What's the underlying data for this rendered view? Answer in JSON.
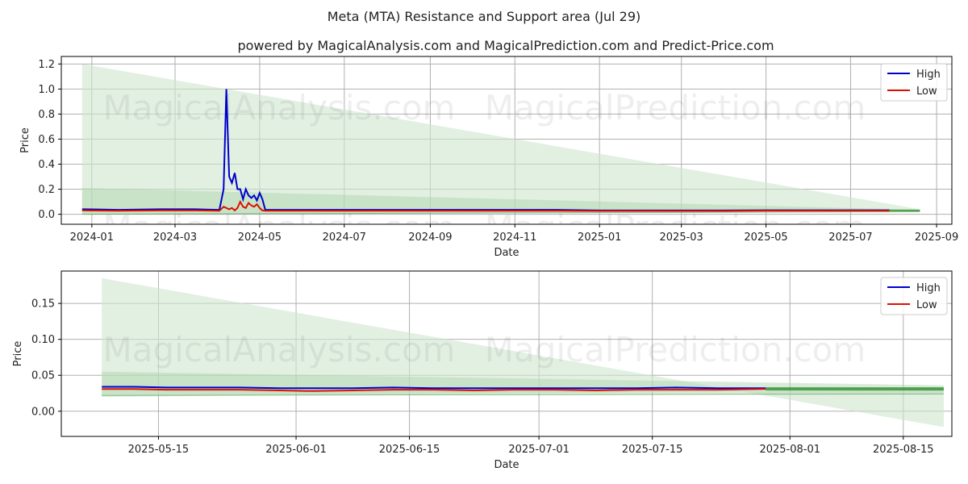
{
  "figure": {
    "title": "Meta (MTA) Resistance and Support area (Jul 29)",
    "subtitle": "powered by MagicalAnalysis.com and MagicalPrediction.com and Predict-Price.com",
    "watermarks": [
      "MagicalAnalysis.com",
      "MagicalPrediction.com"
    ]
  },
  "colors": {
    "high": "#0000cc",
    "low": "#dd1100",
    "band": "#2e8b2e",
    "band_fill": "#cfe6cf"
  },
  "chart_data": [
    {
      "type": "line",
      "x_axis_type": "date",
      "xlabel": "Date",
      "ylabel": "Price",
      "xlim": [
        "2023-12-10",
        "2025-09-12"
      ],
      "ylim": [
        -0.08,
        1.26
      ],
      "x_ticks": [
        "2024-01",
        "2024-03",
        "2024-05",
        "2024-07",
        "2024-09",
        "2024-11",
        "2025-01",
        "2025-03",
        "2025-05",
        "2025-07",
        "2025-09"
      ],
      "y_ticks": [
        0.0,
        0.2,
        0.4,
        0.6,
        0.8,
        1.0,
        1.2
      ],
      "y_tick_labels": [
        "0.0",
        "0.2",
        "0.4",
        "0.6",
        "0.8",
        "1.0",
        "1.2"
      ],
      "grid": true,
      "legend_position": "top-right",
      "series": [
        {
          "name": "High",
          "x": [
            "2023-12-25",
            "2024-01-20",
            "2024-02-20",
            "2024-03-15",
            "2024-04-02",
            "2024-04-05",
            "2024-04-07",
            "2024-04-09",
            "2024-04-11",
            "2024-04-13",
            "2024-04-15",
            "2024-04-17",
            "2024-04-19",
            "2024-04-21",
            "2024-04-23",
            "2024-04-25",
            "2024-04-27",
            "2024-04-29",
            "2024-05-01",
            "2024-05-03",
            "2024-05-05",
            "2024-06-01",
            "2024-07-01",
            "2024-08-01",
            "2024-09-01",
            "2024-10-01",
            "2024-11-01",
            "2024-12-01",
            "2025-01-01",
            "2025-02-01",
            "2025-03-01",
            "2025-04-01",
            "2025-05-01",
            "2025-06-01",
            "2025-07-01",
            "2025-07-29"
          ],
          "values": [
            0.04,
            0.035,
            0.04,
            0.04,
            0.035,
            0.2,
            1.0,
            0.3,
            0.25,
            0.33,
            0.2,
            0.2,
            0.12,
            0.2,
            0.15,
            0.13,
            0.15,
            0.11,
            0.17,
            0.12,
            0.035,
            0.035,
            0.035,
            0.035,
            0.035,
            0.035,
            0.035,
            0.035,
            0.03,
            0.03,
            0.03,
            0.03,
            0.032,
            0.032,
            0.032,
            0.032
          ]
        },
        {
          "name": "Low",
          "x": [
            "2023-12-25",
            "2024-01-20",
            "2024-02-20",
            "2024-03-15",
            "2024-04-02",
            "2024-04-05",
            "2024-04-07",
            "2024-04-09",
            "2024-04-11",
            "2024-04-13",
            "2024-04-15",
            "2024-04-17",
            "2024-04-19",
            "2024-04-21",
            "2024-04-23",
            "2024-04-25",
            "2024-04-27",
            "2024-04-29",
            "2024-05-01",
            "2024-05-03",
            "2024-05-05",
            "2024-06-01",
            "2024-07-01",
            "2024-08-01",
            "2024-09-01",
            "2024-10-01",
            "2024-11-01",
            "2024-12-01",
            "2025-01-01",
            "2025-02-01",
            "2025-03-01",
            "2025-04-01",
            "2025-05-01",
            "2025-06-01",
            "2025-07-01",
            "2025-07-29"
          ],
          "values": [
            0.03,
            0.028,
            0.03,
            0.03,
            0.028,
            0.06,
            0.05,
            0.04,
            0.05,
            0.03,
            0.05,
            0.1,
            0.06,
            0.05,
            0.09,
            0.07,
            0.06,
            0.08,
            0.05,
            0.03,
            0.028,
            0.028,
            0.028,
            0.028,
            0.028,
            0.028,
            0.028,
            0.028,
            0.026,
            0.026,
            0.026,
            0.026,
            0.029,
            0.029,
            0.029,
            0.029
          ]
        }
      ],
      "resistance_band": {
        "x": [
          "2023-12-25",
          "2025-08-20"
        ],
        "upper_start": 1.2,
        "upper_end": 0.04,
        "lower_start": 0.0,
        "lower_end": 0.02
      },
      "support_band": {
        "x": [
          "2023-12-25",
          "2025-08-20"
        ],
        "upper_start": 0.21,
        "upper_end": 0.035,
        "lower_start": 0.0,
        "lower_end": 0.02
      },
      "forecast_line": {
        "x": [
          "2025-07-29",
          "2025-08-20"
        ],
        "value": 0.03
      }
    },
    {
      "type": "line",
      "x_axis_type": "date",
      "xlabel": "Date",
      "ylabel": "Price",
      "xlim": [
        "2025-05-03",
        "2025-08-21"
      ],
      "ylim": [
        -0.035,
        0.195
      ],
      "x_ticks": [
        "2025-05-15",
        "2025-06-01",
        "2025-06-15",
        "2025-07-01",
        "2025-07-15",
        "2025-08-01",
        "2025-08-15"
      ],
      "y_ticks": [
        0.0,
        0.05,
        0.1,
        0.15
      ],
      "y_tick_labels": [
        "0.00",
        "0.05",
        "0.10",
        "0.15"
      ],
      "grid": true,
      "legend_position": "top-right",
      "series": [
        {
          "name": "High",
          "x": [
            "2025-05-08",
            "2025-05-12",
            "2025-05-16",
            "2025-05-20",
            "2025-05-25",
            "2025-05-30",
            "2025-06-03",
            "2025-06-08",
            "2025-06-13",
            "2025-06-18",
            "2025-06-23",
            "2025-06-28",
            "2025-07-03",
            "2025-07-08",
            "2025-07-13",
            "2025-07-18",
            "2025-07-23",
            "2025-07-29"
          ],
          "values": [
            0.034,
            0.034,
            0.033,
            0.033,
            0.033,
            0.032,
            0.032,
            0.032,
            0.033,
            0.032,
            0.032,
            0.032,
            0.032,
            0.032,
            0.032,
            0.033,
            0.032,
            0.032
          ]
        },
        {
          "name": "Low",
          "x": [
            "2025-05-08",
            "2025-05-12",
            "2025-05-16",
            "2025-05-20",
            "2025-05-25",
            "2025-05-30",
            "2025-06-03",
            "2025-06-08",
            "2025-06-13",
            "2025-06-18",
            "2025-06-23",
            "2025-06-28",
            "2025-07-03",
            "2025-07-08",
            "2025-07-13",
            "2025-07-18",
            "2025-07-23",
            "2025-07-29"
          ],
          "values": [
            0.031,
            0.031,
            0.03,
            0.03,
            0.03,
            0.029,
            0.028,
            0.029,
            0.03,
            0.03,
            0.029,
            0.03,
            0.03,
            0.029,
            0.03,
            0.03,
            0.03,
            0.031
          ]
        }
      ],
      "resistance_band": {
        "x": [
          "2025-05-08",
          "2025-08-20"
        ],
        "upper_start": 0.185,
        "upper_end": -0.022,
        "lower_start": 0.02,
        "lower_end": 0.03
      },
      "support_band": {
        "x": [
          "2025-05-08",
          "2025-08-20"
        ],
        "upper_start": 0.055,
        "upper_end": 0.036,
        "lower_start": 0.022,
        "lower_end": 0.024
      },
      "forecast_line": {
        "x": [
          "2025-07-29",
          "2025-08-20"
        ],
        "value": 0.031
      }
    }
  ]
}
